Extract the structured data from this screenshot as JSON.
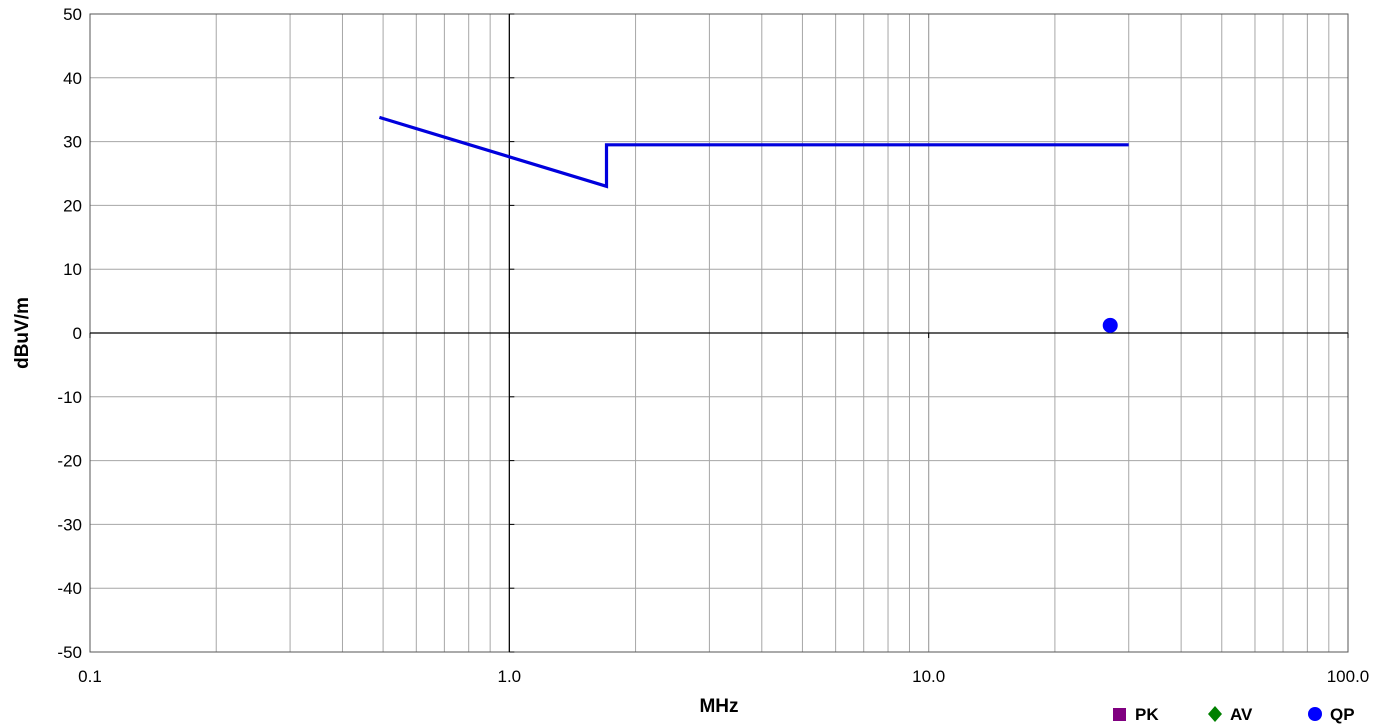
{
  "chart_data": {
    "type": "line",
    "xlabel": "MHz",
    "ylabel": "dBuV/m",
    "x_scale": "log",
    "xlim": [
      0.1,
      100.0
    ],
    "ylim": [
      -50,
      50
    ],
    "x_ticks": [
      "0.1",
      "1.0",
      "10.0",
      "100.0"
    ],
    "y_ticks": [
      "50",
      "40",
      "30",
      "20",
      "10",
      "0",
      "-10",
      "-20",
      "-30",
      "-40",
      "-50"
    ],
    "grid": true,
    "legend_position": "bottom-right",
    "legend": [
      {
        "label": "PK",
        "marker": "square",
        "color": "#800080"
      },
      {
        "label": "AV",
        "marker": "diamond",
        "color": "#008000"
      },
      {
        "label": "QP",
        "marker": "circle",
        "color": "#0000ff"
      }
    ],
    "series": [
      {
        "kind": "line",
        "color": "#0000dd",
        "points": [
          [
            0.49,
            33.8
          ],
          [
            1.705,
            23.0
          ],
          [
            1.705,
            29.5
          ],
          [
            30.0,
            29.5
          ]
        ]
      },
      {
        "kind": "scatter",
        "name": "QP",
        "color": "#0000ff",
        "points": [
          [
            27.1,
            1.2
          ]
        ]
      }
    ]
  }
}
